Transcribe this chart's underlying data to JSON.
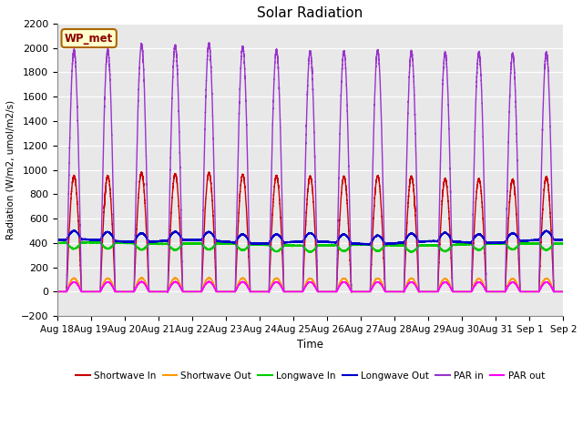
{
  "title": "Solar Radiation",
  "ylabel": "Radiation (W/m2, umol/m2/s)",
  "xlabel": "Time",
  "ylim": [
    -200,
    2200
  ],
  "plot_bg": "#e8e8e8",
  "fig_bg": "#ffffff",
  "annotation_text": "WP_met",
  "annotation_bg": "#ffffcc",
  "annotation_border": "#aa6600",
  "xtick_labels": [
    "Aug 18",
    "Aug 19",
    "Aug 20",
    "Aug 21",
    "Aug 22",
    "Aug 23",
    "Aug 24",
    "Aug 25",
    "Aug 26",
    "Aug 27",
    "Aug 28",
    "Aug 29",
    "Aug 30",
    "Aug 31",
    "Sep 1",
    "Sep 2"
  ],
  "series": {
    "Shortwave In": {
      "color": "#cc0000"
    },
    "Shortwave Out": {
      "color": "#ff9900"
    },
    "Longwave In": {
      "color": "#00cc00"
    },
    "Longwave Out": {
      "color": "#0000cc"
    },
    "PAR in": {
      "color": "#9933cc"
    },
    "PAR out": {
      "color": "#ff00ff"
    }
  },
  "n_days": 15,
  "ppd": 1440,
  "sw_in_peak": 950,
  "sw_out_peak": 110,
  "par_in_peak": 2000,
  "par_out_peak": 80,
  "lw_in_base": 390,
  "lw_out_base": 410,
  "day_start": 0.28,
  "day_end": 0.72,
  "ytick_step": 200,
  "linewidth": 1.0
}
